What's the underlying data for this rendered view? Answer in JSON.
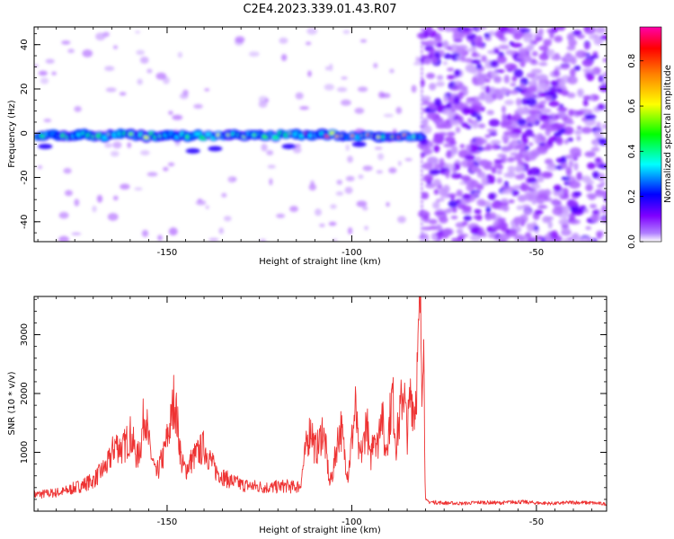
{
  "title": "C2E4.2023.339.01.43.R07",
  "chart_data": [
    {
      "type": "heatmap",
      "panel": "spectrogram",
      "xlabel": "Height of straight line (km)",
      "ylabel": "Frequency (Hz)",
      "xlim": [
        -186,
        -31
      ],
      "ylim": [
        -49,
        48
      ],
      "xticks": [
        -150,
        -100,
        -50
      ],
      "xtick_labels": [
        "-150",
        "-100",
        "-50"
      ],
      "yticks": [
        -40,
        -20,
        0,
        20,
        40
      ],
      "ytick_labels": [
        "-40",
        "-20",
        "0",
        "20",
        "40"
      ],
      "colorbar": {
        "label": "Normalized spectral amplitude",
        "range": [
          0,
          0.95
        ],
        "ticks": [
          0.0,
          0.2,
          0.4,
          0.6,
          0.8
        ],
        "tick_labels": [
          "0.0",
          "0.2",
          "0.4",
          "0.6",
          "0.8"
        ],
        "colormap": [
          "#ffffff",
          "#7f00ff",
          "#0000ff",
          "#00ffff",
          "#00ff00",
          "#ffff00",
          "#ff8000",
          "#ff0000",
          "#ff00aa"
        ]
      },
      "features": {
        "signal_band_center_hz": -1,
        "signal_band_start_km": -186,
        "signal_band_end_km": -81,
        "noise_onset_km": -81,
        "strongest_region_km": [
          -113,
          -83
        ]
      }
    },
    {
      "type": "line",
      "panel": "snr",
      "xlabel": "Height of straight line (km)",
      "ylabel": "SNR (10 * v/v)",
      "xlim": [
        -186,
        -31
      ],
      "ylim": [
        0,
        3650
      ],
      "xticks": [
        -150,
        -100,
        -50
      ],
      "xtick_labels": [
        "-150",
        "-100",
        "-50"
      ],
      "yticks": [
        1000,
        2000,
        3000
      ],
      "ytick_labels": [
        "1000",
        "2000",
        "3000"
      ],
      "color": "#ee3333",
      "series": [
        {
          "name": "SNR",
          "x": [
            -186,
            -182,
            -178,
            -174,
            -170,
            -166,
            -164,
            -162,
            -160,
            -158,
            -157,
            -156,
            -155,
            -153,
            -151,
            -149,
            -148,
            -147,
            -146,
            -145,
            -143,
            -140,
            -137,
            -134,
            -130,
            -126,
            -122,
            -118,
            -116,
            -114,
            -112,
            -111,
            -110,
            -109,
            -108,
            -107,
            -106,
            -105,
            -104,
            -103,
            -102,
            -101,
            -100,
            -99,
            -98,
            -97,
            -96,
            -95,
            -94,
            -93,
            -92,
            -91,
            -90,
            -89,
            -88,
            -87,
            -86,
            -85,
            -84,
            -83,
            -82,
            -81.5,
            -81,
            -80.6,
            -80.2,
            -80,
            -79.6,
            -75,
            -70,
            -65,
            -60,
            -55,
            -50,
            -45,
            -40,
            -35,
            -31
          ],
          "y": [
            280,
            300,
            330,
            420,
            520,
            800,
            1150,
            1050,
            1300,
            900,
            1200,
            1780,
            1150,
            600,
            950,
            1500,
            1970,
            1350,
            800,
            700,
            900,
            1100,
            700,
            550,
            450,
            420,
            400,
            430,
            410,
            430,
            1200,
            1450,
            1050,
            1100,
            1400,
            1050,
            450,
            700,
            1150,
            1450,
            1000,
            600,
            1200,
            1750,
            900,
            1050,
            1600,
            800,
            1450,
            1100,
            1850,
            1000,
            1400,
            2000,
            1150,
            1600,
            2150,
            1300,
            2050,
            1700,
            2650,
            3650,
            2400,
            3300,
            800,
            180,
            160,
            140,
            130,
            150,
            140,
            160,
            140,
            130,
            150,
            140,
            120
          ]
        }
      ]
    }
  ]
}
